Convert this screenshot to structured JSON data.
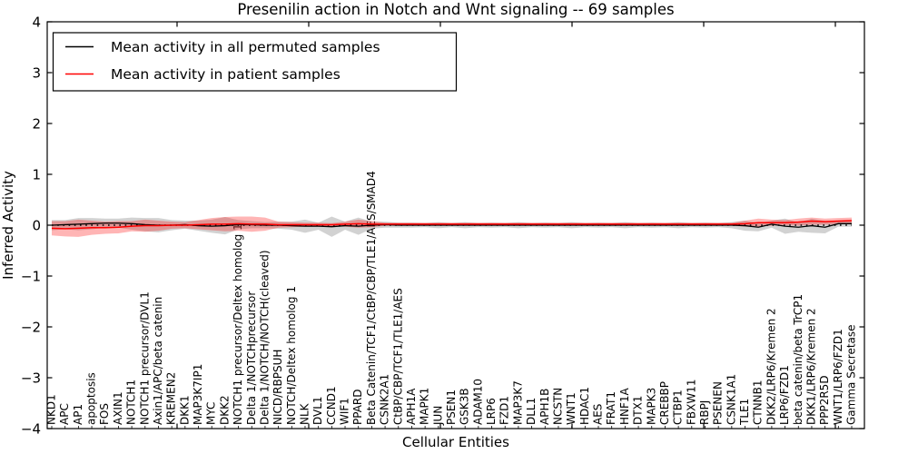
{
  "title": "Presenilin action in Notch and Wnt signaling -- 69 samples",
  "axes": {
    "xlabel": "Cellular Entities",
    "ylabel": "Inferred Activity",
    "y_tick_labels": [
      "4",
      "3",
      "2",
      "1",
      "0",
      "−1",
      "−2",
      "−3",
      "−4"
    ]
  },
  "legend": {
    "items": [
      {
        "label": "Mean activity in all permuted samples",
        "color": "#000000"
      },
      {
        "label": "Mean activity in patient samples",
        "color": "#ff0000"
      }
    ]
  },
  "colors": {
    "permuted_line": "#000000",
    "patient_line": "#ff0000",
    "permuted_band": "rgba(125,125,125,0.35)",
    "patient_band": "rgba(255,10,10,0.30)",
    "frame": "#000000",
    "background": "#ffffff"
  },
  "chart_data": {
    "type": "line",
    "title": "Presenilin action in Notch and Wnt signaling -- 69 samples",
    "xlabel": "Cellular Entities",
    "ylabel": "Inferred Activity",
    "ylim": [
      -4,
      4
    ],
    "grid": false,
    "legend_position": "upper left",
    "reference_line": {
      "y": 0,
      "style": "dotted",
      "color": "#000000"
    },
    "categories": [
      "NKD1",
      "APC",
      "AP1",
      "apoptosis",
      "FOS",
      "AXIN1",
      "NOTCH1",
      "NOTCH1 precursor/DVL1",
      "Axin1/APC/beta catenin",
      "KREMEN2",
      "DKK1",
      "MAP3K7IP1",
      "MYC",
      "DKK2",
      "NOTCH1 precursor/Deltex homolog 1",
      "Delta 1/NOTCHprecursor",
      "Delta 1/NOTCH/NOTCH(cleaved)",
      "NICD/RBPSUH",
      "NOTCH/Deltex homolog 1",
      "NLK",
      "DVL1",
      "CCND1",
      "WIF1",
      "PPARD",
      "Beta Catenin/TCF1/CtBP/CBP/TLE1/AES/SMAD4",
      "CSNK2A1",
      "CtBP/CBP/TCF1/TLE1/AES",
      "APH1A",
      "MAPK1",
      "JUN",
      "PSEN1",
      "GSK3B",
      "ADAM10",
      "LRP6",
      "FZD1",
      "MAP3K7",
      "DLL1",
      "APH1B",
      "NCSTN",
      "WNT1",
      "HDAC1",
      "AES",
      "FRAT1",
      "HNF1A",
      "DTX1",
      "MAPK3",
      "CREBBP",
      "CTBP1",
      "FBXW11",
      "RBPJ",
      "PSENEN",
      "CSNK1A1",
      "TLE1",
      "CTNNB1",
      "DKK2/LRP6/Kremen 2",
      "LRP6/FZD1",
      "beta catenin/beta TrCP1",
      "DKK1/LRP6/Kremen 2",
      "PPP2R5D",
      "WNT1/LRP6/FZD1",
      "Gamma Secretase"
    ],
    "series": [
      {
        "name": "Mean activity in all permuted samples",
        "color": "#000000",
        "band_color": "rgba(125,125,125,0.35)",
        "values": [
          0.0,
          0.01,
          0.02,
          0.03,
          0.04,
          0.04,
          0.03,
          0.01,
          0.0,
          0.0,
          0.01,
          -0.01,
          -0.02,
          -0.01,
          0.01,
          0.01,
          0.0,
          0.0,
          -0.01,
          -0.02,
          -0.02,
          -0.03,
          -0.01,
          -0.02,
          0.0,
          0.01,
          0.0,
          0.0,
          0.0,
          0.0,
          0.0,
          0.0,
          0.0,
          0.0,
          0.0,
          0.0,
          0.0,
          0.0,
          0.0,
          0.0,
          0.0,
          0.0,
          0.0,
          0.0,
          0.0,
          0.0,
          0.0,
          0.0,
          0.0,
          0.0,
          0.0,
          0.0,
          -0.01,
          -0.04,
          0.02,
          -0.02,
          -0.04,
          -0.01,
          -0.04,
          0.03,
          0.03
        ],
        "band_half_width": [
          0.1,
          0.09,
          0.12,
          0.11,
          0.09,
          0.09,
          0.12,
          0.13,
          0.14,
          0.1,
          0.08,
          0.1,
          0.13,
          0.17,
          0.09,
          0.07,
          0.06,
          0.07,
          0.08,
          0.13,
          0.07,
          0.2,
          0.08,
          0.17,
          0.07,
          0.06,
          0.05,
          0.05,
          0.04,
          0.06,
          0.04,
          0.06,
          0.04,
          0.05,
          0.04,
          0.06,
          0.04,
          0.05,
          0.04,
          0.06,
          0.04,
          0.05,
          0.04,
          0.06,
          0.04,
          0.05,
          0.04,
          0.06,
          0.04,
          0.05,
          0.04,
          0.06,
          0.1,
          0.08,
          0.07,
          0.15,
          0.09,
          0.14,
          0.12,
          0.06,
          0.06
        ]
      },
      {
        "name": "Mean activity in patient samples",
        "color": "#ff0000",
        "band_color": "rgba(255,10,10,0.30)",
        "values": [
          -0.06,
          -0.07,
          -0.06,
          -0.05,
          -0.05,
          -0.04,
          -0.02,
          -0.01,
          -0.01,
          0.0,
          0.0,
          0.01,
          0.02,
          0.02,
          0.03,
          0.02,
          0.02,
          0.01,
          0.01,
          0.01,
          0.01,
          0.01,
          0.02,
          0.03,
          0.02,
          0.02,
          0.02,
          0.02,
          0.02,
          0.02,
          0.02,
          0.02,
          0.02,
          0.02,
          0.02,
          0.02,
          0.02,
          0.02,
          0.02,
          0.02,
          0.02,
          0.02,
          0.02,
          0.02,
          0.02,
          0.02,
          0.02,
          0.02,
          0.02,
          0.02,
          0.02,
          0.02,
          0.03,
          0.05,
          0.05,
          0.05,
          0.06,
          0.08,
          0.07,
          0.08,
          0.09
        ],
        "band_half_width": [
          0.14,
          0.15,
          0.17,
          0.14,
          0.12,
          0.12,
          0.1,
          0.12,
          0.1,
          0.07,
          0.06,
          0.09,
          0.12,
          0.14,
          0.14,
          0.15,
          0.13,
          0.06,
          0.05,
          0.04,
          0.04,
          0.03,
          0.05,
          0.08,
          0.06,
          0.03,
          0.03,
          0.03,
          0.03,
          0.03,
          0.03,
          0.03,
          0.03,
          0.03,
          0.03,
          0.03,
          0.03,
          0.03,
          0.03,
          0.03,
          0.03,
          0.03,
          0.03,
          0.03,
          0.03,
          0.03,
          0.03,
          0.03,
          0.03,
          0.03,
          0.03,
          0.03,
          0.06,
          0.08,
          0.06,
          0.05,
          0.07,
          0.07,
          0.06,
          0.06,
          0.06
        ]
      }
    ]
  }
}
